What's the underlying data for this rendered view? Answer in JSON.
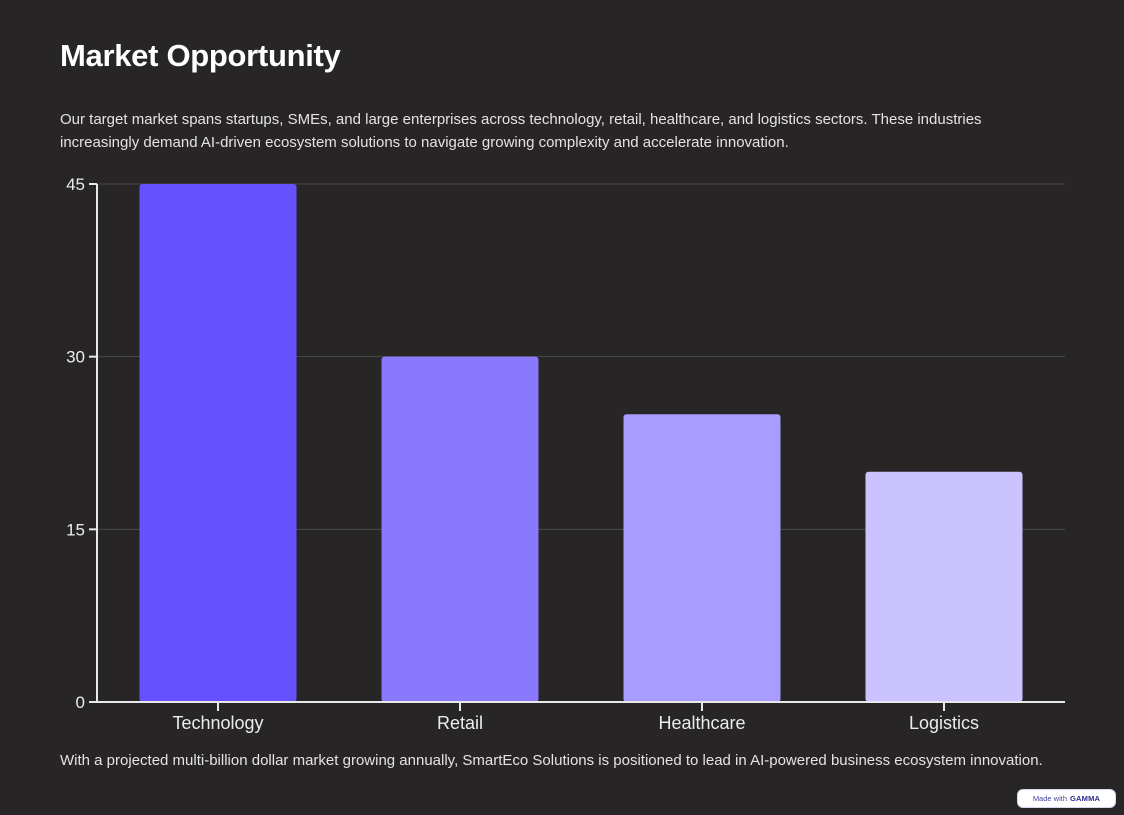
{
  "slide": {
    "title": "Market Opportunity",
    "intro": "Our target market spans startups, SMEs, and large enterprises across technology, retail, healthcare, and logistics sectors. These industries increasingly demand AI-driven ecosystem solutions to navigate growing complexity and accelerate innovation.",
    "footer": "With a projected multi-billion dollar market growing annually, SmartEco Solutions is positioned to lead in AI-powered business ecosystem innovation.",
    "badge": {
      "prefix": "Made with",
      "brand": "GAMMA"
    }
  },
  "chart_data": {
    "type": "bar",
    "categories": [
      "Technology",
      "Retail",
      "Healthcare",
      "Logistics"
    ],
    "values": [
      45,
      30,
      25,
      20
    ],
    "colors": [
      "#6651ff",
      "#8a79ff",
      "#a89cff",
      "#cbc3ff"
    ],
    "yticks": [
      "0",
      "15",
      "30",
      "45"
    ],
    "ylim": [
      0,
      45
    ],
    "grid": true,
    "title": "",
    "xlabel": "",
    "ylabel": ""
  }
}
